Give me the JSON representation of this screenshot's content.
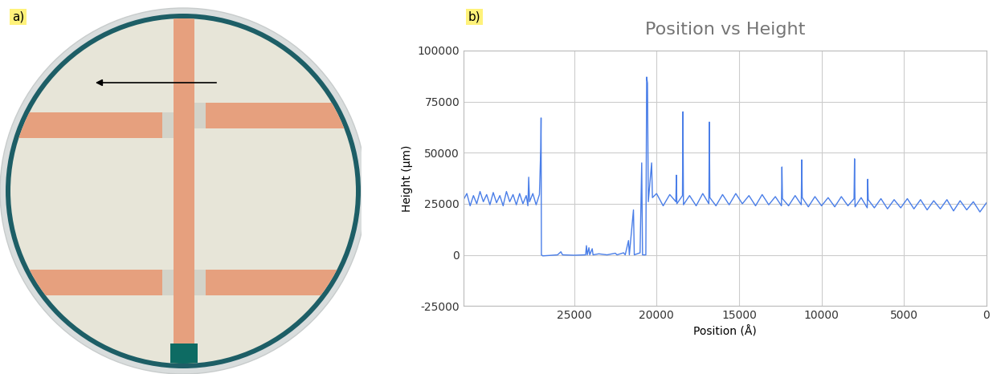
{
  "panel_labels": [
    "a)",
    "b)"
  ],
  "chart_data": {
    "type": "line",
    "title": "Position vs Height",
    "x_label": "Position (Å)",
    "y_label": "Height (µm)",
    "x": [
      31700,
      31500,
      31300,
      31100,
      30900,
      30700,
      30500,
      30300,
      30100,
      29900,
      29700,
      29500,
      29300,
      29100,
      28900,
      28700,
      28500,
      28300,
      28100,
      27900,
      27800,
      27750,
      27700,
      27500,
      27300,
      27100,
      27020,
      27000,
      26980,
      26900,
      26500,
      26000,
      25800,
      25700,
      25000,
      24300,
      24250,
      24200,
      24100,
      24050,
      23900,
      23850,
      23500,
      23000,
      22500,
      22400,
      22000,
      21900,
      21700,
      21650,
      21400,
      21350,
      21000,
      20900,
      20850,
      20650,
      20600,
      20550,
      20500,
      20300,
      20250,
      20000,
      19600,
      19200,
      18830,
      18800,
      18770,
      18430,
      18400,
      18370,
      18000,
      17600,
      17200,
      16830,
      16800,
      16770,
      16400,
      16000,
      15600,
      15200,
      14800,
      14400,
      14000,
      13600,
      13200,
      12800,
      12430,
      12400,
      12370,
      12000,
      11600,
      11230,
      11200,
      11170,
      10800,
      10400,
      10000,
      9600,
      9200,
      8800,
      8400,
      8030,
      8000,
      7970,
      7600,
      7230,
      7200,
      7170,
      6800,
      6400,
      6000,
      5600,
      5200,
      4800,
      4400,
      4000,
      3600,
      3200,
      2800,
      2400,
      2000,
      1600,
      1200,
      800,
      400,
      0
    ],
    "values": [
      27000,
      30000,
      24000,
      29000,
      25000,
      31000,
      26000,
      29500,
      24500,
      30500,
      25500,
      29000,
      24000,
      31000,
      26000,
      29500,
      24500,
      30000,
      25000,
      29000,
      24000,
      38000,
      26000,
      30000,
      24500,
      29500,
      52000,
      67000,
      0,
      -500,
      -300,
      0,
      1500,
      0,
      -200,
      0,
      4500,
      0,
      3500,
      0,
      3000,
      0,
      500,
      0,
      800,
      0,
      1000,
      0,
      7000,
      0,
      22000,
      0,
      1000,
      45000,
      0,
      0,
      87000,
      84000,
      26000,
      45000,
      28000,
      30000,
      24000,
      29500,
      26000,
      39000,
      25000,
      29000,
      70000,
      24500,
      29000,
      24000,
      30000,
      25000,
      65000,
      28000,
      24000,
      29500,
      24500,
      30000,
      25000,
      29000,
      24000,
      29500,
      24500,
      28500,
      24000,
      43000,
      27500,
      24000,
      29000,
      24500,
      46500,
      28000,
      23500,
      28500,
      24000,
      28000,
      23500,
      28500,
      24000,
      27500,
      47000,
      23500,
      28000,
      23000,
      37000,
      27000,
      23000,
      27500,
      22500,
      27000,
      23000,
      27500,
      22500,
      27000,
      22000,
      26500,
      22500,
      27000,
      21500,
      26500,
      22000,
      26000,
      21000,
      25500
    ],
    "color": "#4a7ee8",
    "xlim": [
      31700,
      0
    ],
    "xticks": [
      25000,
      20000,
      15000,
      10000,
      5000,
      0
    ],
    "ylim": [
      -25000,
      100000
    ],
    "yticks": [
      -25000,
      0,
      25000,
      50000,
      75000,
      100000
    ],
    "grid": true
  }
}
